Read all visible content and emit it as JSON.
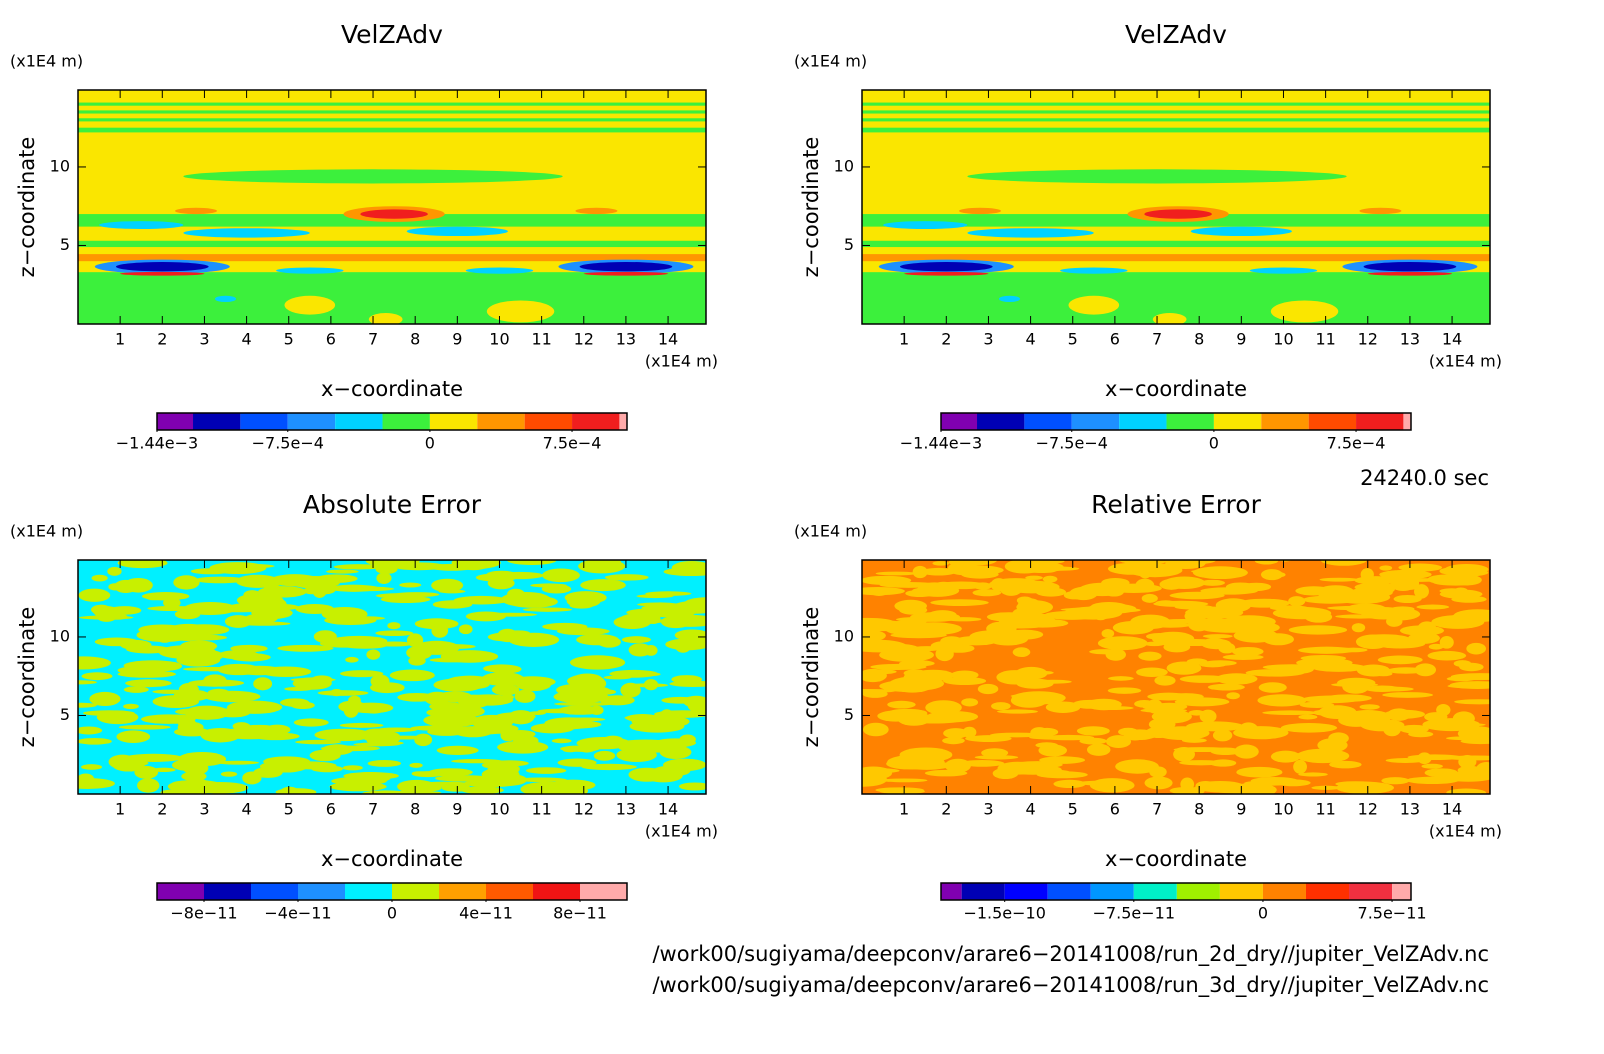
{
  "chart_data": [
    {
      "type": "contour",
      "title": "VelZAdv",
      "xlabel": "x−coordinate",
      "ylabel": "z−coordinate",
      "x_unit": "(x1E4 m)",
      "y_unit": "(x1E4 m)",
      "xlim": [
        0,
        14.9
      ],
      "ylim": [
        0,
        14.9
      ],
      "xticks": [
        1,
        2,
        3,
        4,
        5,
        6,
        7,
        8,
        9,
        10,
        11,
        12,
        13,
        14
      ],
      "yticks": [
        5,
        10
      ],
      "colorbar": {
        "levels": [
          -0.00144,
          -0.00125,
          -0.001,
          -0.00075,
          -0.0005,
          -0.00025,
          0,
          0.00025,
          0.0005,
          0.00075,
          0.001,
          0.00104
        ],
        "colors": [
          "#8000b0",
          "#0000b4",
          "#0050ff",
          "#1e90ff",
          "#00d2ff",
          "#3cf03c",
          "#fae600",
          "#ff9600",
          "#ff4b00",
          "#f01e1e",
          "#ffaaaa"
        ],
        "ticks": [
          {
            "value": -0.00144,
            "label": "−1.44e−3"
          },
          {
            "value": -0.00075,
            "label": "−7.5e−4"
          },
          0,
          {
            "value": 0.00075,
            "label": "7.5e−4"
          }
        ]
      }
    },
    {
      "type": "contour",
      "title": "VelZAdv",
      "xlabel": "x−coordinate",
      "ylabel": "z−coordinate",
      "x_unit": "(x1E4 m)",
      "y_unit": "(x1E4 m)",
      "xlim": [
        0,
        14.9
      ],
      "ylim": [
        0,
        14.9
      ],
      "xticks": [
        1,
        2,
        3,
        4,
        5,
        6,
        7,
        8,
        9,
        10,
        11,
        12,
        13,
        14
      ],
      "yticks": [
        5,
        10
      ],
      "colorbar": {
        "levels": [
          -0.00144,
          -0.00125,
          -0.001,
          -0.00075,
          -0.0005,
          -0.00025,
          0,
          0.00025,
          0.0005,
          0.00075,
          0.001,
          0.00104
        ],
        "colors": [
          "#8000b0",
          "#0000b4",
          "#0050ff",
          "#1e90ff",
          "#00d2ff",
          "#3cf03c",
          "#fae600",
          "#ff9600",
          "#ff4b00",
          "#f01e1e",
          "#ffaaaa"
        ],
        "ticks": [
          {
            "value": -0.00144,
            "label": "−1.44e−3"
          },
          {
            "value": -0.00075,
            "label": "−7.5e−4"
          },
          0,
          {
            "value": 0.00075,
            "label": "7.5e−4"
          }
        ]
      }
    },
    {
      "type": "contour",
      "title": "Absolute Error",
      "xlabel": "x−coordinate",
      "ylabel": "z−coordinate",
      "x_unit": "(x1E4 m)",
      "y_unit": "(x1E4 m)",
      "xlim": [
        0,
        14.9
      ],
      "ylim": [
        0,
        14.9
      ],
      "xticks": [
        1,
        2,
        3,
        4,
        5,
        6,
        7,
        8,
        9,
        10,
        11,
        12,
        13,
        14
      ],
      "yticks": [
        5,
        10
      ],
      "colorbar": {
        "levels": [
          -1e-10,
          -8e-11,
          -6e-11,
          -4e-11,
          -2e-11,
          0,
          2e-11,
          4e-11,
          6e-11,
          8e-11,
          1e-10
        ],
        "colors": [
          "#8000b0",
          "#0000b4",
          "#0050ff",
          "#1e90ff",
          "#00f0ff",
          "#c8f000",
          "#ffa000",
          "#ff5a00",
          "#f01414",
          "#ffaaaa"
        ],
        "ticks": [
          {
            "value": -8e-11,
            "label": "−8e−11"
          },
          {
            "value": -4e-11,
            "label": "−4e−11"
          },
          0,
          {
            "value": 4e-11,
            "label": "4e−11"
          },
          {
            "value": 8e-11,
            "label": "8e−11"
          }
        ]
      }
    },
    {
      "type": "contour",
      "title": "Relative Error",
      "xlabel": "x−coordinate",
      "ylabel": "z−coordinate",
      "x_unit": "(x1E4 m)",
      "y_unit": "(x1E4 m)",
      "xlim": [
        0,
        14.9
      ],
      "ylim": [
        0,
        14.9
      ],
      "xticks": [
        1,
        2,
        3,
        4,
        5,
        6,
        7,
        8,
        9,
        10,
        11,
        12,
        13,
        14
      ],
      "yticks": [
        5,
        10
      ],
      "colorbar": {
        "levels": [
          -1.87e-10,
          -1.75e-10,
          -1.5e-10,
          -1.25e-10,
          -1e-10,
          -7.5e-11,
          -5e-11,
          -2.5e-11,
          0,
          2.5e-11,
          5e-11,
          7.5e-11,
          8.6e-11
        ],
        "colors": [
          "#8000b0",
          "#0000b4",
          "#0000ff",
          "#0050ff",
          "#0096ff",
          "#00f0c8",
          "#a0f000",
          "#ffc800",
          "#ff8200",
          "#ff3000",
          "#f03040",
          "#ffaaaa"
        ],
        "ticks": [
          {
            "value": -1.5e-10,
            "label": "−1.5e−10"
          },
          {
            "value": -7.5e-11,
            "label": "−7.5e−11"
          },
          0,
          {
            "value": 7.5e-11,
            "label": "7.5e−11"
          }
        ]
      }
    }
  ],
  "time_label": "24240.0 sec",
  "files": [
    "/work00/sugiyama/deepconv/arare6−20141008/run_2d_dry//jupiter_VelZAdv.nc",
    "/work00/sugiyama/deepconv/arare6−20141008/run_3d_dry//jupiter_VelZAdv.nc"
  ]
}
